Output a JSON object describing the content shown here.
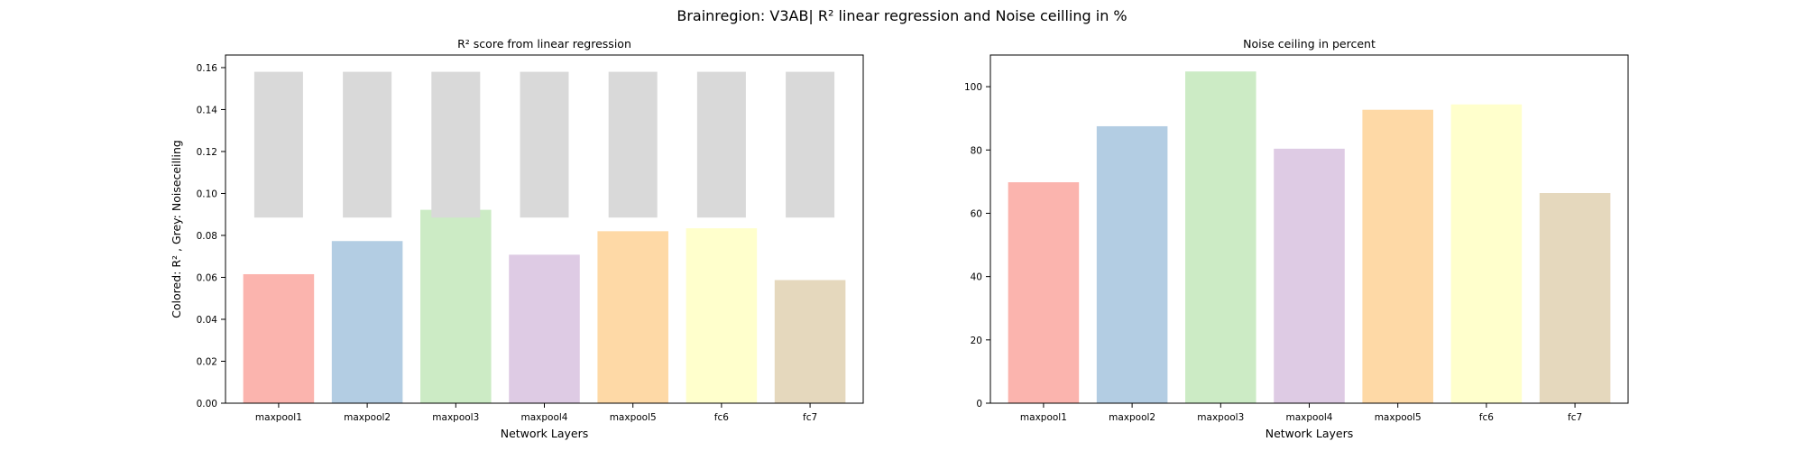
{
  "figure": {
    "suptitle": "Brainregion: V3AB| R² linear regression and Noise ceilling in %"
  },
  "chart_data": [
    {
      "type": "bar",
      "title": "R² score from linear regression",
      "xlabel": "Network Layers",
      "ylabel": "Colored: R² , Grey: Noiseceilling",
      "categories": [
        "maxpool1",
        "maxpool2",
        "maxpool3",
        "maxpool4",
        "maxpool5",
        "fc6",
        "fc7"
      ],
      "series": [
        {
          "values": [
            0.0615,
            0.0773,
            0.0922,
            0.0708,
            0.082,
            0.0834,
            0.0587
          ]
        },
        {
          "values": [
            0.158,
            0.158,
            0.158,
            0.158,
            0.158,
            0.158,
            0.158
          ],
          "bottom": [
            0.0885,
            0.0885,
            0.0885,
            0.0885,
            0.0885,
            0.0885,
            0.0885
          ]
        }
      ],
      "ylim": [
        0,
        0.166
      ],
      "yticks": [
        "0.00",
        "0.02",
        "0.04",
        "0.06",
        "0.08",
        "0.10",
        "0.12",
        "0.14",
        "0.16"
      ],
      "colors": [
        "#fbb4ae",
        "#b3cde3",
        "#ccebc5",
        "#decbe4",
        "#fed9a6",
        "#ffffcc",
        "#e5d8bd"
      ],
      "noise_color": "#d9d9d9",
      "grid": false
    },
    {
      "type": "bar",
      "title": "Noise ceiling in percent",
      "xlabel": "Network Layers",
      "ylabel": "",
      "categories": [
        "maxpool1",
        "maxpool2",
        "maxpool3",
        "maxpool4",
        "maxpool5",
        "fc6",
        "fc7"
      ],
      "values": [
        69.8,
        87.5,
        104.8,
        80.4,
        92.7,
        94.4,
        66.4
      ],
      "ylim": [
        0,
        110
      ],
      "yticks": [
        "0",
        "20",
        "40",
        "60",
        "80",
        "100"
      ],
      "colors": [
        "#fbb4ae",
        "#b3cde3",
        "#ccebc5",
        "#decbe4",
        "#fed9a6",
        "#ffffcc",
        "#e5d8bd"
      ],
      "grid": false
    }
  ]
}
